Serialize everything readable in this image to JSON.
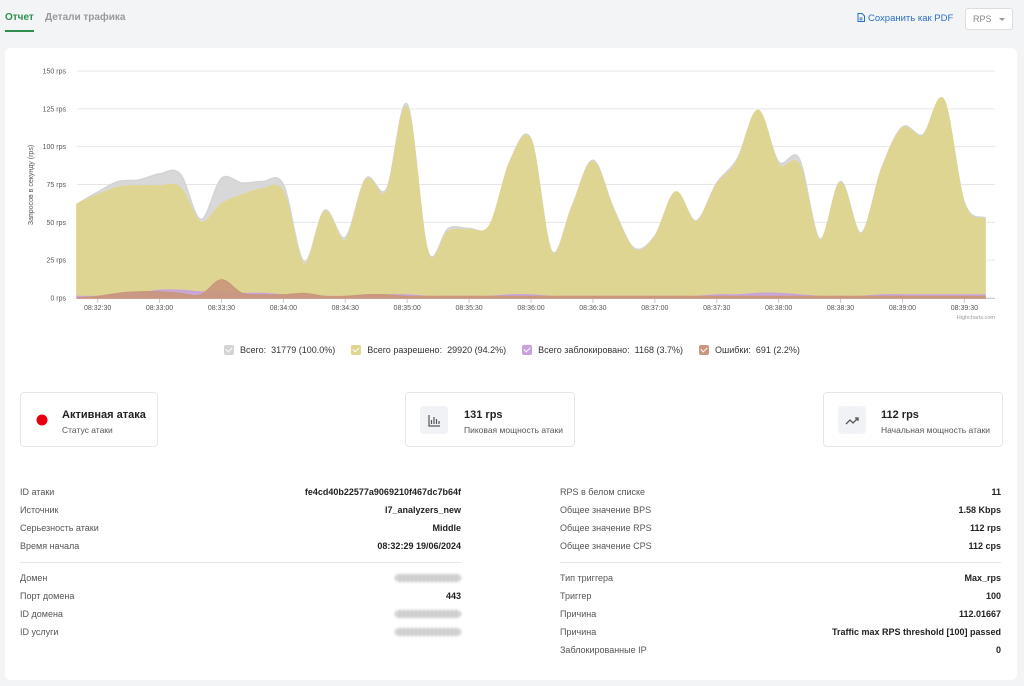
{
  "tabs": [
    "Отчет",
    "Детали трафика"
  ],
  "actions": {
    "save_pdf": "Сохранить как PDF",
    "unit_select": "RPS"
  },
  "chart_data": {
    "type": "area",
    "y_axis_label": "Запросов в секунду (rps)",
    "credit": "Highcharts.com",
    "categories": [
      null,
      "08:32:30",
      null,
      null,
      "08:33:00",
      null,
      null,
      "08:33:30",
      null,
      null,
      "08:34:00",
      null,
      null,
      "08:34:30",
      null,
      null,
      "08:35:00",
      null,
      null,
      "08:35:30",
      null,
      null,
      "08:36:00",
      null,
      null,
      "08:36:30",
      null,
      null,
      "08:37:00",
      null,
      null,
      "08:37:30",
      null,
      null,
      "08:38:00",
      null,
      null,
      "08:38:30",
      null,
      null,
      "08:39:00",
      null,
      null,
      "08:39:30",
      null
    ],
    "ylim": [
      0,
      150
    ],
    "yticks": [
      {
        "value": 0,
        "label": "0 rps"
      },
      {
        "value": 25,
        "label": "25 rps"
      },
      {
        "value": 50,
        "label": "50 rps"
      },
      {
        "value": 75,
        "label": "75 rps"
      },
      {
        "value": 100,
        "label": "100 rps"
      },
      {
        "value": 125,
        "label": "125 rps"
      },
      {
        "value": 150,
        "label": "150 rps"
      }
    ],
    "grid": true,
    "series": [
      {
        "name": "Всего:",
        "legend_value": "31779 (100.0%)",
        "color": "#d4d4d4",
        "values": [
          62,
          70,
          77,
          78,
          82,
          82,
          52,
          79,
          76,
          77,
          75,
          24,
          58,
          40,
          79,
          72,
          128,
          31,
          46,
          46,
          48,
          91,
          105,
          31,
          61,
          91,
          59,
          33,
          41,
          70,
          51,
          76,
          92,
          124,
          90,
          92,
          39,
          77,
          43,
          86,
          113,
          108,
          131,
          63,
          53
        ]
      },
      {
        "name": "Всего разрешено:",
        "legend_value": "29920 (94.2%)",
        "color": "#e0d58c",
        "values": [
          62,
          68,
          73,
          74,
          74,
          73,
          50,
          62,
          68,
          72,
          70,
          22,
          57,
          38,
          78,
          70,
          126,
          30,
          44,
          45,
          48,
          90,
          104,
          30,
          60,
          90,
          58,
          32,
          40,
          70,
          50,
          75,
          90,
          124,
          88,
          88,
          38,
          76,
          42,
          85,
          112,
          107,
          131,
          62,
          52
        ]
      },
      {
        "name": "Всего заблокировано:",
        "legend_value": "1168 (3.7%)",
        "color": "#c9a2dc",
        "values": [
          1,
          1,
          2,
          3,
          5,
          5,
          4,
          4,
          3,
          3,
          2,
          1,
          1,
          1,
          2,
          2,
          2,
          1,
          1,
          1,
          1,
          2,
          2,
          1,
          1,
          1,
          1,
          1,
          1,
          1,
          1,
          2,
          2,
          3,
          3,
          2,
          1,
          1,
          1,
          2,
          2,
          2,
          2,
          2,
          2
        ]
      },
      {
        "name": "Ошибки:",
        "legend_value": "691 (2.2%)",
        "color": "#c9977c",
        "values": [
          0,
          1,
          3,
          4,
          4,
          3,
          2,
          12,
          3,
          2,
          2,
          3,
          1,
          1,
          2,
          2,
          1,
          1,
          1,
          1,
          1,
          1,
          1,
          1,
          1,
          1,
          1,
          1,
          1,
          1,
          1,
          1,
          1,
          1,
          1,
          1,
          1,
          1,
          1,
          1,
          1,
          1,
          1,
          1,
          1
        ]
      }
    ]
  },
  "stats": [
    {
      "value": "Активная атака",
      "label": "Статус атаки"
    },
    {
      "value": "131 rps",
      "label": "Пиковая мощность атаки"
    },
    {
      "value": "112 rps",
      "label": "Начальная мощность атаки"
    }
  ],
  "details_left": [
    {
      "label": "ID атаки",
      "value": "fe4cd40b22577a9069210f467dc7b64f"
    },
    {
      "label": "Источник",
      "value": "l7_analyzers_new"
    },
    {
      "label": "Серьезность атаки",
      "value": "Middle"
    },
    {
      "label": "Время начала",
      "value": "08:32:29 19/06/2024"
    },
    {
      "label": "Домен"
    },
    {
      "label": "Порт домена",
      "value": "443"
    },
    {
      "label": "ID домена"
    },
    {
      "label": "ID услуги"
    }
  ],
  "details_right": [
    {
      "label": "RPS в белом списке",
      "value": "11"
    },
    {
      "label": "Общее значение BPS",
      "value": "1.58 Kbps"
    },
    {
      "label": "Общее значение RPS",
      "value": "112 rps"
    },
    {
      "label": "Общее значение CPS",
      "value": "112 cps"
    },
    {
      "label": "Тип триггера",
      "value": "Max_rps"
    },
    {
      "label": "Триггер",
      "value": "100"
    },
    {
      "label": "Причина",
      "value": "112.01667"
    },
    {
      "label": "Причина",
      "value": "Traffic max RPS threshold [100] passed"
    },
    {
      "label": "Заблокированные IP",
      "value": "0"
    }
  ]
}
